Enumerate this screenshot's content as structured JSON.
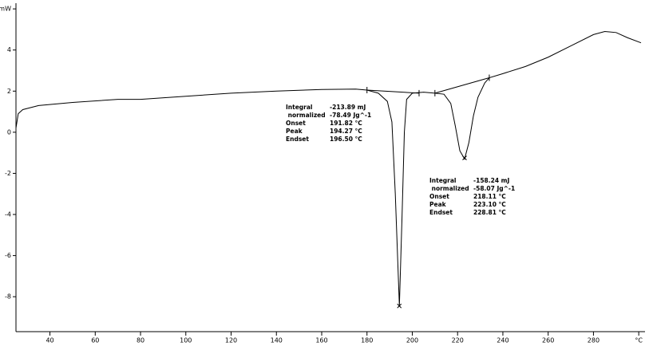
{
  "chart_data": {
    "type": "line",
    "xlim": [
      25,
      301
    ],
    "ylim": [
      -9.7,
      6.2
    ],
    "xticks": [
      40,
      60,
      80,
      100,
      120,
      140,
      160,
      180,
      200,
      220,
      240,
      260,
      280,
      {
        "value": 300,
        "label": "°C"
      }
    ],
    "yticks": [
      -8,
      -6,
      -4,
      -2,
      0,
      2,
      4,
      {
        "value": 6,
        "label": "mW"
      }
    ],
    "color": "#000000",
    "series": [
      {
        "x": [
          25,
          26,
          28,
          35,
          50,
          70,
          80,
          100,
          120,
          140,
          160,
          175,
          180,
          185,
          189,
          191,
          192.5,
          194.3,
          195.5,
          196.5,
          197.5,
          200,
          205,
          210,
          214,
          217,
          219,
          221,
          223.1,
          225,
          227,
          229,
          232,
          234,
          240,
          250,
          260,
          270,
          280,
          285,
          290,
          295,
          301
        ],
        "values": [
          0.2,
          0.9,
          1.1,
          1.3,
          1.45,
          1.6,
          1.6,
          1.75,
          1.9,
          2.0,
          2.08,
          2.1,
          2.05,
          1.9,
          1.5,
          0.5,
          -3,
          -8.45,
          -4,
          0,
          1.6,
          1.9,
          1.95,
          1.9,
          1.85,
          1.4,
          0.3,
          -0.9,
          -1.3,
          -0.5,
          0.8,
          1.7,
          2.4,
          2.65,
          2.85,
          3.2,
          3.65,
          4.2,
          4.75,
          4.9,
          4.85,
          4.6,
          4.35
        ]
      },
      {
        "x": [
          180,
          203
        ],
        "values": [
          2.05,
          1.9
        ]
      },
      {
        "x": [
          210,
          234
        ],
        "values": [
          1.9,
          2.65
        ]
      }
    ],
    "peaks": {
      "x": [
        194.27,
        223.1
      ],
      "values": [
        -8.45,
        -1.25
      ]
    },
    "annotations": [
      {
        "rows": [
          [
            "Integral",
            "-213.89 mJ"
          ],
          [
            " normalized",
            "-78.49 Jg^-1"
          ],
          [
            "Onset",
            "191.82 °C"
          ],
          [
            "Peak",
            "194.27 °C"
          ],
          [
            "Endset",
            "196.50 °C"
          ]
        ]
      },
      {
        "rows": [
          [
            "Integral",
            "-158.24 mJ"
          ],
          [
            " normalized",
            "-58.07 Jg^-1"
          ],
          [
            "Onset",
            "218.11 °C"
          ],
          [
            "Peak",
            "223.10 °C"
          ],
          [
            "Endset",
            "228.81 °C"
          ]
        ]
      }
    ]
  }
}
